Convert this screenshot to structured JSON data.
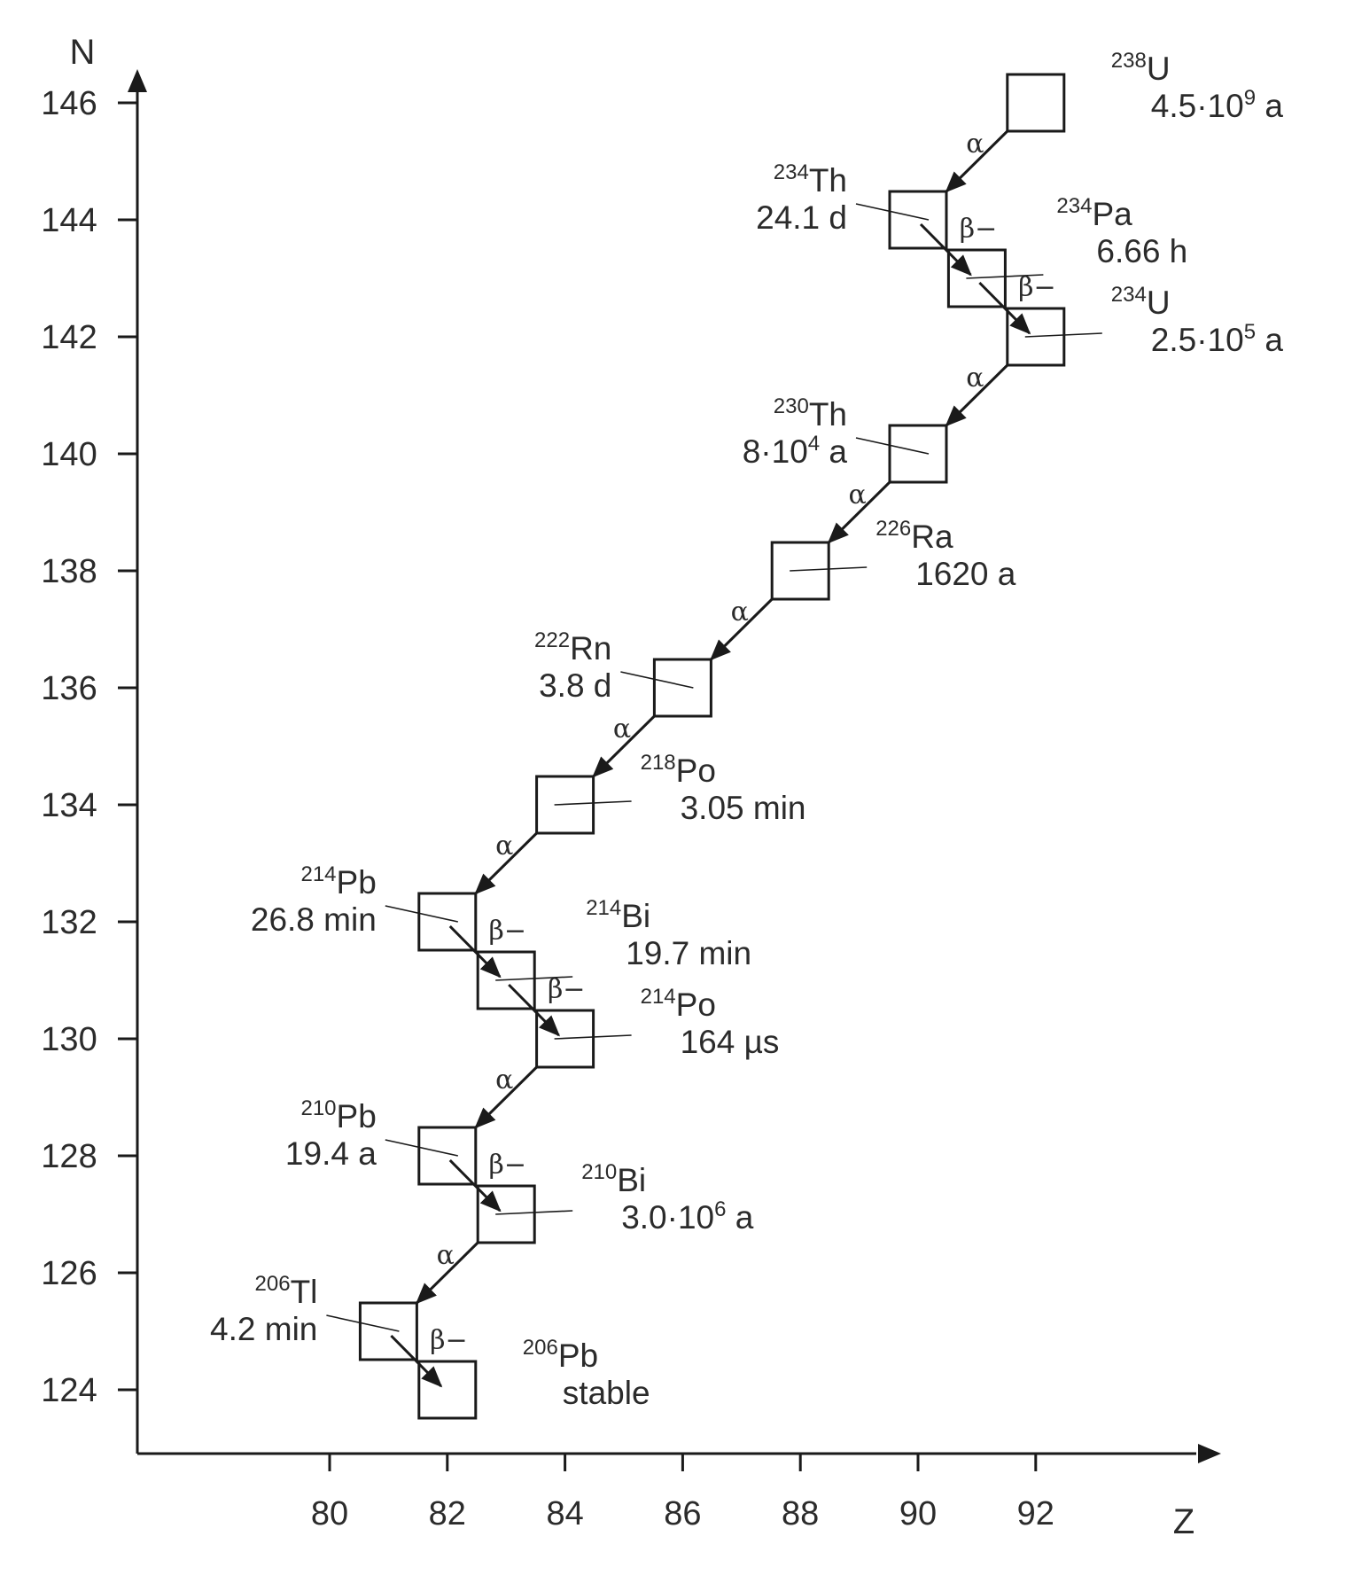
{
  "chart_data": {
    "type": "decay-chain",
    "x_axis": {
      "label": "Z",
      "ticks": [
        80,
        82,
        84,
        86,
        88,
        90,
        92
      ]
    },
    "y_axis": {
      "label": "N",
      "ticks": [
        124,
        126,
        128,
        130,
        132,
        134,
        136,
        138,
        140,
        142,
        144,
        146
      ]
    },
    "nuclides": [
      {
        "id": "U238",
        "mass": "238",
        "symbol": "U",
        "z": 92,
        "n": 146,
        "halflife": "4.5·10",
        "halflife_exp": "9",
        "halflife_unit": " a"
      },
      {
        "id": "Th234",
        "mass": "234",
        "symbol": "Th",
        "z": 90,
        "n": 144,
        "halflife": "24.1 d"
      },
      {
        "id": "Pa234",
        "mass": "234",
        "symbol": "Pa",
        "z": 91,
        "n": 143,
        "halflife": "6.66 h"
      },
      {
        "id": "U234",
        "mass": "234",
        "symbol": "U",
        "z": 92,
        "n": 142,
        "halflife": "2.5·10",
        "halflife_exp": "5",
        "halflife_unit": " a"
      },
      {
        "id": "Th230",
        "mass": "230",
        "symbol": "Th",
        "z": 90,
        "n": 140,
        "halflife": "8·10",
        "halflife_exp": "4",
        "halflife_unit": " a"
      },
      {
        "id": "Ra226",
        "mass": "226",
        "symbol": "Ra",
        "z": 88,
        "n": 138,
        "halflife": "1620 a"
      },
      {
        "id": "Rn222",
        "mass": "222",
        "symbol": "Rn",
        "z": 86,
        "n": 136,
        "halflife": "3.8 d"
      },
      {
        "id": "Po218",
        "mass": "218",
        "symbol": "Po",
        "z": 84,
        "n": 134,
        "halflife": "3.05 min"
      },
      {
        "id": "Pb214",
        "mass": "214",
        "symbol": "Pb",
        "z": 82,
        "n": 132,
        "halflife": "26.8 min"
      },
      {
        "id": "Bi214",
        "mass": "214",
        "symbol": "Bi",
        "z": 83,
        "n": 131,
        "halflife": "19.7 min"
      },
      {
        "id": "Po214",
        "mass": "214",
        "symbol": "Po",
        "z": 84,
        "n": 130,
        "halflife": "164 µs"
      },
      {
        "id": "Pb210",
        "mass": "210",
        "symbol": "Pb",
        "z": 82,
        "n": 128,
        "halflife": "19.4 a"
      },
      {
        "id": "Bi210",
        "mass": "210",
        "symbol": "Bi",
        "z": 83,
        "n": 127,
        "halflife": "3.0·10",
        "halflife_exp": "6",
        "halflife_unit": " a"
      },
      {
        "id": "Tl206",
        "mass": "206",
        "symbol": "Tl",
        "z": 81,
        "n": 125,
        "halflife": "4.2 min"
      },
      {
        "id": "Pb206",
        "mass": "206",
        "symbol": "Pb",
        "z": 82,
        "n": 124,
        "halflife": "stable"
      }
    ],
    "decays": [
      {
        "from": "U238",
        "to": "Th234",
        "mode": "α"
      },
      {
        "from": "Th234",
        "to": "Pa234",
        "mode": "β−"
      },
      {
        "from": "Pa234",
        "to": "U234",
        "mode": "β−"
      },
      {
        "from": "U234",
        "to": "Th230",
        "mode": "α"
      },
      {
        "from": "Th230",
        "to": "Ra226",
        "mode": "α"
      },
      {
        "from": "Ra226",
        "to": "Rn222",
        "mode": "α"
      },
      {
        "from": "Rn222",
        "to": "Po218",
        "mode": "α"
      },
      {
        "from": "Po218",
        "to": "Pb214",
        "mode": "α"
      },
      {
        "from": "Pb214",
        "to": "Bi214",
        "mode": "β−"
      },
      {
        "from": "Bi214",
        "to": "Po214",
        "mode": "β−"
      },
      {
        "from": "Po214",
        "to": "Pb210",
        "mode": "α"
      },
      {
        "from": "Pb210",
        "to": "Bi210",
        "mode": "β−"
      },
      {
        "from": "Bi210",
        "to": "Tl206",
        "mode": "α"
      },
      {
        "from": "Tl206",
        "to": "Pb206",
        "mode": "β−"
      }
    ]
  }
}
